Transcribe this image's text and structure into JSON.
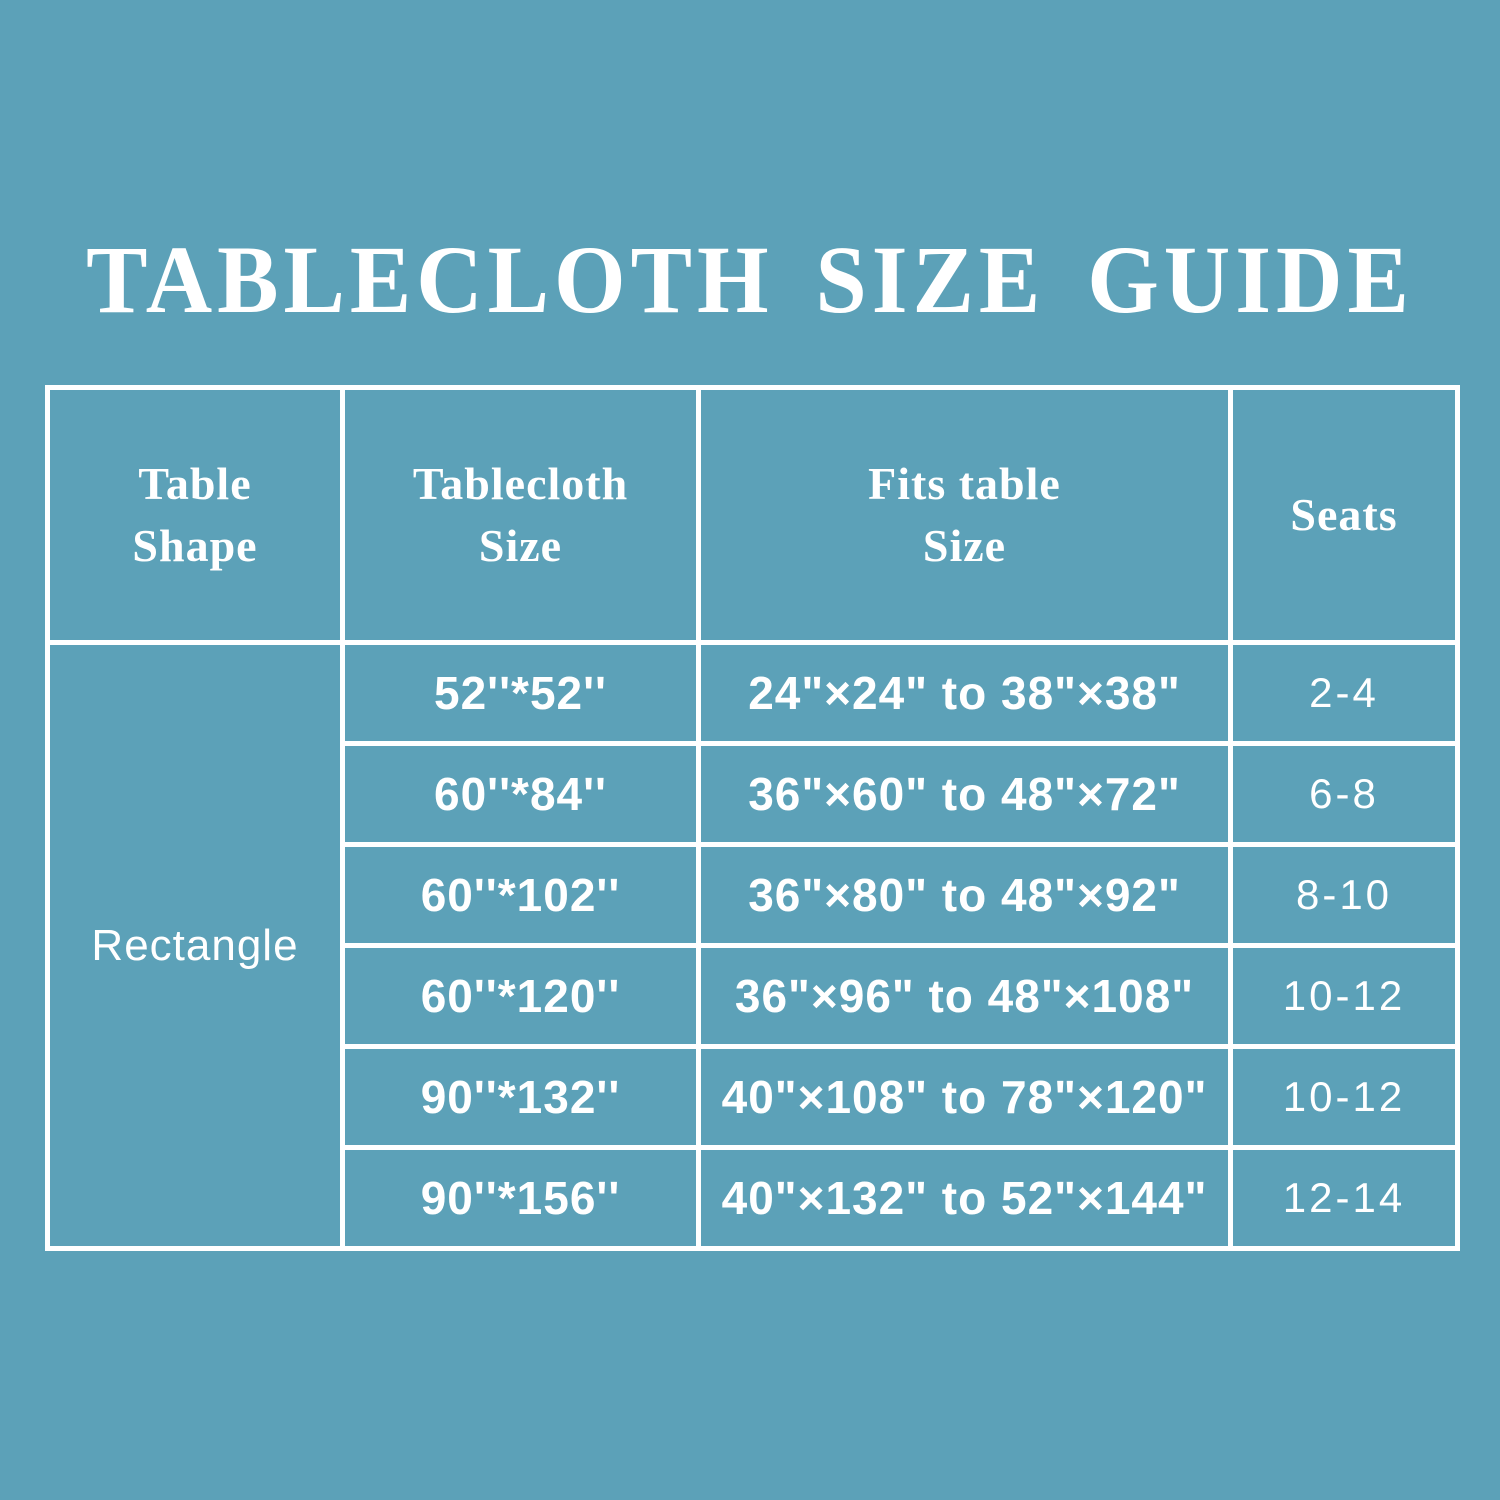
{
  "title": "TABLECLOTH SIZE GUIDE",
  "colors": {
    "background": "#5CA1B8",
    "text": "#FFFFFF",
    "border": "#FFFFFF"
  },
  "table": {
    "headers": [
      "Table\nShape",
      "Tablecloth\nSize",
      "Fits table\nSize",
      "Seats"
    ],
    "shape_label": "Rectangle",
    "rows": [
      {
        "size": "52''*52''",
        "fits": "24\"×24\" to 38\"×38\"",
        "seats": "2-4"
      },
      {
        "size": "60''*84''",
        "fits": "36\"×60\" to 48\"×72\"",
        "seats": "6-8"
      },
      {
        "size": "60''*102''",
        "fits": "36\"×80\" to 48\"×92\"",
        "seats": "8-10"
      },
      {
        "size": "60''*120''",
        "fits": "36\"×96\" to 48\"×108\"",
        "seats": "10-12"
      },
      {
        "size": "90''*132''",
        "fits": "40\"×108\" to 78\"×120\"",
        "seats": "10-12"
      },
      {
        "size": "90''*156''",
        "fits": "40\"×132\" to 52\"×144\"",
        "seats": "12-14"
      }
    ]
  },
  "chart_data": {
    "type": "table",
    "title": "TABLECLOTH SIZE GUIDE",
    "columns": [
      "Table Shape",
      "Tablecloth Size",
      "Fits table Size",
      "Seats"
    ],
    "rows": [
      [
        "Rectangle",
        "52''*52''",
        "24\"×24\" to 38\"×38\"",
        "2-4"
      ],
      [
        "Rectangle",
        "60''*84''",
        "36\"×60\" to 48\"×72\"",
        "6-8"
      ],
      [
        "Rectangle",
        "60''*102''",
        "36\"×80\" to 48\"×92\"",
        "8-10"
      ],
      [
        "Rectangle",
        "60''*120''",
        "36\"×96\" to 48\"×108\"",
        "10-12"
      ],
      [
        "Rectangle",
        "90''*132''",
        "40\"×108\" to 78\"×120\"",
        "10-12"
      ],
      [
        "Rectangle",
        "90''*156''",
        "40\"×132\" to 52\"×144\"",
        "12-14"
      ]
    ]
  }
}
